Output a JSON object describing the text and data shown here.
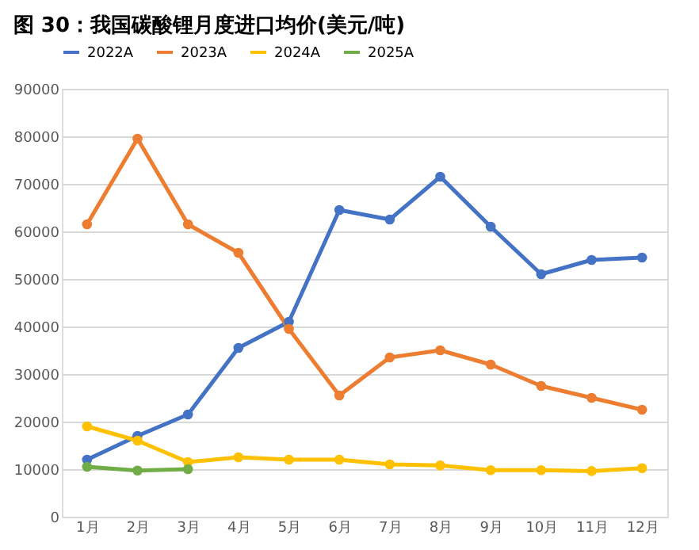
{
  "chart_data": {
    "type": "line",
    "title": "图 30：我国碳酸锂月度进口均价(美元/吨)",
    "categories": [
      "1月",
      "2月",
      "3月",
      "4月",
      "5月",
      "6月",
      "7月",
      "8月",
      "9月",
      "10月",
      "11月",
      "12月"
    ],
    "series": [
      {
        "name": "2022A",
        "color": "#4472c4",
        "values": [
          12000,
          17000,
          21500,
          35500,
          41000,
          64500,
          62500,
          71500,
          61000,
          51000,
          54000,
          54500
        ]
      },
      {
        "name": "2023A",
        "color": "#ed7d31",
        "values": [
          61500,
          79500,
          61500,
          55500,
          39500,
          25500,
          33500,
          35000,
          32000,
          27500,
          25000,
          22500
        ]
      },
      {
        "name": "2024A",
        "color": "#ffc000",
        "values": [
          19000,
          16000,
          11500,
          12500,
          12000,
          12000,
          11000,
          10800,
          9800,
          9800,
          9600,
          10200
        ]
      },
      {
        "name": "2025A",
        "color": "#70ad47",
        "values": [
          10500,
          9700,
          10000,
          null,
          null,
          null,
          null,
          null,
          null,
          null,
          null,
          null
        ]
      }
    ],
    "ylim": [
      0,
      90000
    ],
    "yticks": [
      0,
      10000,
      20000,
      30000,
      40000,
      50000,
      60000,
      70000,
      80000,
      90000
    ],
    "grid": "y",
    "legend": "top",
    "marker": "circle",
    "line_style": "solid"
  }
}
